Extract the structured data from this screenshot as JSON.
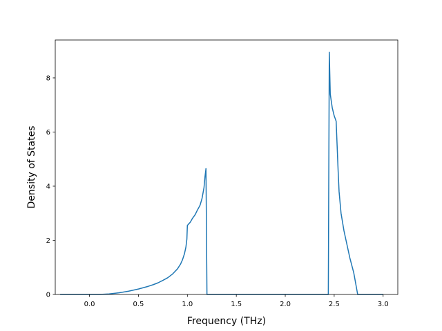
{
  "chart_data": {
    "type": "line",
    "title": "",
    "xlabel": "Frequency (THz)",
    "ylabel": "Density of States",
    "xlim": [
      -0.35,
      3.15
    ],
    "ylim": [
      0,
      9.4
    ],
    "xticks": [
      0.0,
      0.5,
      1.0,
      1.5,
      2.0,
      2.5,
      3.0
    ],
    "xtick_labels": [
      "0.0",
      "0.5",
      "1.0",
      "1.5",
      "2.0",
      "2.5",
      "3.0"
    ],
    "yticks": [
      0,
      2,
      4,
      6,
      8
    ],
    "ytick_labels": [
      "0",
      "2",
      "4",
      "6",
      "8"
    ],
    "grid": false,
    "legend": false,
    "series": [
      {
        "color": "#1f77b4",
        "x": [
          -0.3,
          -0.2,
          -0.1,
          0.0,
          0.1,
          0.2,
          0.3,
          0.4,
          0.5,
          0.6,
          0.65,
          0.7,
          0.75,
          0.8,
          0.85,
          0.9,
          0.93,
          0.95,
          0.97,
          0.985,
          0.995,
          1.0,
          1.03,
          1.05,
          1.08,
          1.1,
          1.13,
          1.15,
          1.17,
          1.18,
          1.19,
          1.195,
          1.2,
          1.3,
          1.5,
          1.8,
          2.0,
          2.2,
          2.4,
          2.44,
          2.445,
          2.45,
          2.46,
          2.48,
          2.5,
          2.52,
          2.53,
          2.54,
          2.55,
          2.57,
          2.6,
          2.63,
          2.66,
          2.7,
          2.72,
          2.74,
          2.8,
          3.0
        ],
        "y": [
          0,
          0,
          0,
          0,
          0,
          0.02,
          0.06,
          0.12,
          0.2,
          0.3,
          0.36,
          0.43,
          0.52,
          0.62,
          0.76,
          0.95,
          1.12,
          1.28,
          1.5,
          1.75,
          2.05,
          2.55,
          2.67,
          2.8,
          2.95,
          3.1,
          3.3,
          3.55,
          3.95,
          4.35,
          4.65,
          2.4,
          0,
          0,
          0,
          0,
          0,
          0,
          0,
          0,
          4.5,
          8.95,
          7.4,
          6.9,
          6.6,
          6.4,
          5.5,
          4.6,
          3.8,
          3.0,
          2.35,
          1.85,
          1.35,
          0.8,
          0.4,
          0,
          0,
          0
        ]
      }
    ]
  }
}
